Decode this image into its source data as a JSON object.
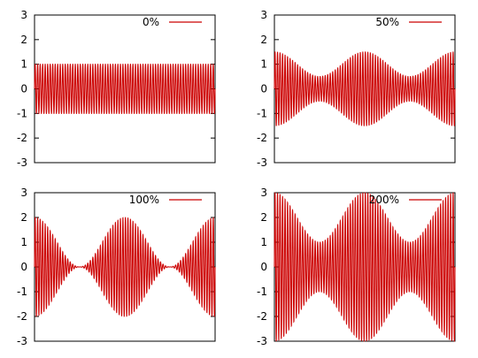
{
  "chart_data": [
    {
      "type": "line",
      "legend": "0%",
      "legend_placement": "top-right",
      "ylim": [
        -3,
        3
      ],
      "y_ticks": [
        "3",
        "2",
        "1",
        "0",
        "-1",
        "-2",
        "-3"
      ],
      "grid": false,
      "series": [
        {
          "name": "0%",
          "color": "#cc0000",
          "carrier_amplitude": 1.0,
          "envelope": "constant",
          "envelope_peaks": [
            1,
            1,
            1
          ]
        }
      ]
    },
    {
      "type": "line",
      "legend": "50%",
      "legend_placement": "top-right",
      "ylim": [
        -3,
        3
      ],
      "y_ticks": [
        "3",
        "2",
        "1",
        "0",
        "-1",
        "-2",
        "-3"
      ],
      "grid": false,
      "series": [
        {
          "name": "50%",
          "color": "#cc0000",
          "envelope_peaks": [
            1.5,
            0.5,
            1.5,
            0.5,
            1.5
          ]
        }
      ]
    },
    {
      "type": "line",
      "legend": "100%",
      "legend_placement": "top-right",
      "ylim": [
        -3,
        3
      ],
      "y_ticks": [
        "3",
        "2",
        "1",
        "0",
        "-1",
        "-2",
        "-3"
      ],
      "grid": false,
      "series": [
        {
          "name": "100%",
          "color": "#cc0000",
          "envelope_peaks": [
            2.0,
            0.0,
            2.0,
            0.0,
            2.0
          ]
        }
      ]
    },
    {
      "type": "line",
      "legend": "200%",
      "legend_placement": "top-right",
      "ylim": [
        -3,
        3
      ],
      "y_ticks": [
        "3",
        "2",
        "1",
        "0",
        "-1",
        "-2",
        "-3"
      ],
      "grid": false,
      "series": [
        {
          "name": "200%",
          "color": "#cc0000",
          "envelope_peaks": [
            3.0,
            1.0,
            3.0,
            1.0,
            3.0
          ]
        }
      ]
    }
  ]
}
